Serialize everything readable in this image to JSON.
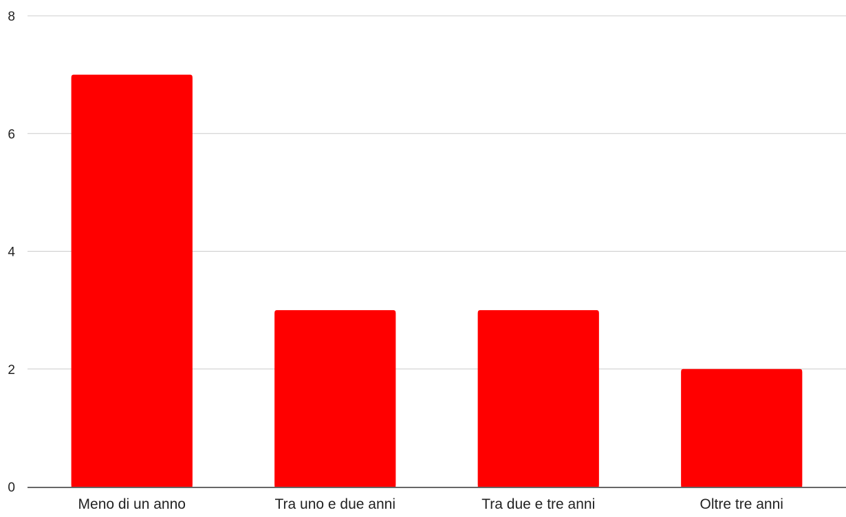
{
  "chart_data": {
    "type": "bar",
    "title": "",
    "xlabel": "",
    "ylabel": "",
    "categories": [
      "Meno di un anno",
      "Tra uno e due anni",
      "Tra due e tre anni",
      "Oltre tre anni"
    ],
    "values": [
      7,
      3,
      3,
      2
    ],
    "ylim": [
      0,
      8
    ],
    "yticks": [
      "0",
      "2",
      "4",
      "6",
      "8"
    ],
    "grid": true,
    "legend": "none",
    "bar_color": "#ff0000",
    "grid_color": "#cccccc",
    "axis_color": "#333333",
    "text_color": "#222222"
  }
}
